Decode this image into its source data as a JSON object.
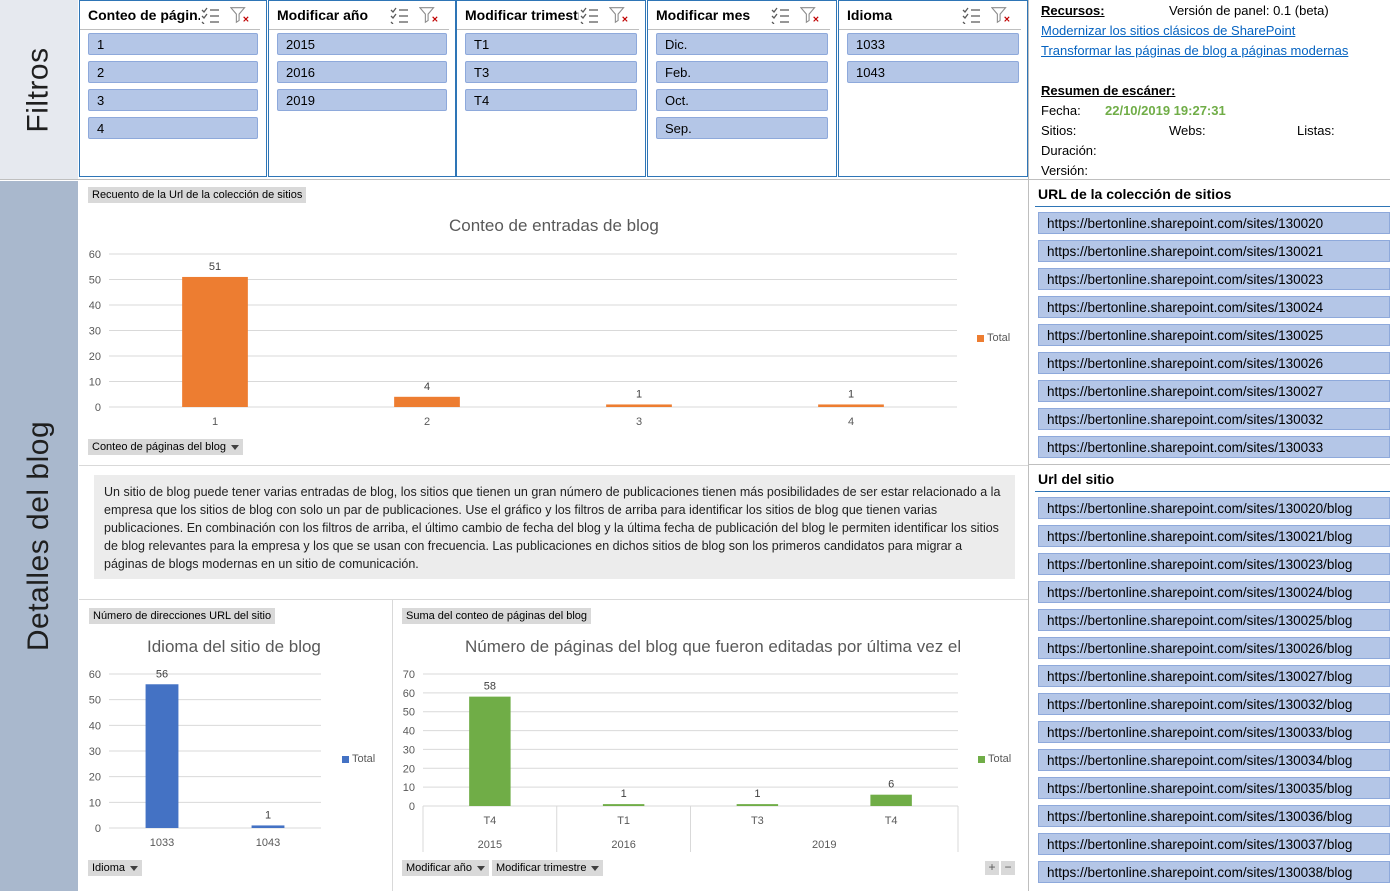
{
  "sections": {
    "filters": "Filtros",
    "details": "Detalles del blog"
  },
  "slicers": [
    {
      "title": "Conteo de págin...",
      "items": [
        "1",
        "2",
        "3",
        "4"
      ]
    },
    {
      "title": "Modificar año",
      "items": [
        "2015",
        "2016",
        "2019"
      ]
    },
    {
      "title": "Modificar trimestre",
      "items": [
        "T1",
        "T3",
        "T4"
      ]
    },
    {
      "title": "Modificar mes",
      "items": [
        "Dic.",
        "Feb.",
        "Oct.",
        "Sep."
      ]
    },
    {
      "title": "Idioma",
      "items": [
        "1033",
        "1043"
      ]
    }
  ],
  "info": {
    "resources_label": "Recursos:",
    "panel_version": "Versión de panel: 0.1 (beta)",
    "link1": "Modernizar los sitios clásicos de SharePoint",
    "link2": "Transformar las páginas de blog a páginas modernas",
    "scanner_label": "Resumen de escáner:",
    "date_label": "Fecha:",
    "date_value": "22/10/2019 19:27:31",
    "sites_label": "Sitios:",
    "webs_label": "Webs:",
    "lists_label": "Listas:",
    "duration_label": "Duración:",
    "version_label": "Versión:",
    "date_color": "#70ad47"
  },
  "chart1": {
    "field_tag": "Recuento de la Url de la colección de sitios",
    "title": "Conteo de entradas de blog",
    "axis_filter": "Conteo de páginas del blog",
    "legend": "Total",
    "color": "#ed7d31"
  },
  "description": "Un sitio de blog puede tener varias entradas de blog, los sitios que tienen un gran número de publicaciones tienen más posibilidades de ser estar relacionado a la empresa que los sitios de blog con solo un par de publicaciones. Use el gráfico y los filtros de arriba para identificar los sitios de blog que tienen varias publicaciones. En combinación con los filtros de arriba, el último cambio de fecha del blog y la última fecha de publicación del blog le permiten identificar los sitios de blog relevantes para la empresa y los que se usan con frecuencia. Las publicaciones en dichos sitios de blog son los primeros candidatos para migrar a páginas de blogs modernas en un sitio de comunicación.",
  "chart2": {
    "field_tag": "Número de direcciones URL del sitio",
    "title": "Idioma del sitio de blog",
    "axis_filter": "Idioma",
    "legend": "Total",
    "color": "#4472c4"
  },
  "chart3": {
    "field_tag": "Suma del conteo de páginas del blog",
    "title": "Número de páginas del blog que fueron editadas por última vez el",
    "axis_filter1": "Modificar año",
    "axis_filter2": "Modificar trimestre",
    "legend": "Total",
    "color": "#70ad47",
    "plus": "+",
    "minus": "−"
  },
  "chart_data": [
    {
      "type": "bar",
      "title": "Conteo de entradas de blog",
      "categories": [
        "1",
        "2",
        "3",
        "4"
      ],
      "series": [
        {
          "name": "Total",
          "values": [
            51,
            4,
            1,
            1
          ]
        }
      ],
      "ylim": [
        0,
        60
      ],
      "yticks": [
        0,
        10,
        20,
        30,
        40,
        50,
        60
      ],
      "legend": "right",
      "grid": true
    },
    {
      "type": "bar",
      "title": "Idioma del sitio de blog",
      "categories": [
        "1033",
        "1043"
      ],
      "series": [
        {
          "name": "Total",
          "values": [
            56,
            1
          ]
        }
      ],
      "ylim": [
        0,
        60
      ],
      "yticks": [
        0,
        10,
        20,
        30,
        40,
        50,
        60
      ],
      "legend": "right",
      "grid": true
    },
    {
      "type": "bar",
      "title": "Número de páginas del blog que fueron editadas por última vez el",
      "categories": [
        "T4",
        "T1",
        "T3",
        "T4"
      ],
      "groups": [
        {
          "label": "2015",
          "span": 1
        },
        {
          "label": "2016",
          "span": 1
        },
        {
          "label": "2019",
          "span": 2
        }
      ],
      "series": [
        {
          "name": "Total",
          "values": [
            58,
            1,
            1,
            6
          ]
        }
      ],
      "ylim": [
        0,
        70
      ],
      "yticks": [
        0,
        10,
        20,
        30,
        40,
        50,
        60,
        70
      ],
      "legend": "right",
      "grid": true
    }
  ],
  "collection_list": {
    "title": "URL de la colección de sitios",
    "items": [
      "https://bertonline.sharepoint.com/sites/130020",
      "https://bertonline.sharepoint.com/sites/130021",
      "https://bertonline.sharepoint.com/sites/130023",
      "https://bertonline.sharepoint.com/sites/130024",
      "https://bertonline.sharepoint.com/sites/130025",
      "https://bertonline.sharepoint.com/sites/130026",
      "https://bertonline.sharepoint.com/sites/130027",
      "https://bertonline.sharepoint.com/sites/130032",
      "https://bertonline.sharepoint.com/sites/130033"
    ]
  },
  "site_list": {
    "title": "Url del sitio",
    "items": [
      "https://bertonline.sharepoint.com/sites/130020/blog",
      "https://bertonline.sharepoint.com/sites/130021/blog",
      "https://bertonline.sharepoint.com/sites/130023/blog",
      "https://bertonline.sharepoint.com/sites/130024/blog",
      "https://bertonline.sharepoint.com/sites/130025/blog",
      "https://bertonline.sharepoint.com/sites/130026/blog",
      "https://bertonline.sharepoint.com/sites/130027/blog",
      "https://bertonline.sharepoint.com/sites/130032/blog",
      "https://bertonline.sharepoint.com/sites/130033/blog",
      "https://bertonline.sharepoint.com/sites/130034/blog",
      "https://bertonline.sharepoint.com/sites/130035/blog",
      "https://bertonline.sharepoint.com/sites/130036/blog",
      "https://bertonline.sharepoint.com/sites/130037/blog",
      "https://bertonline.sharepoint.com/sites/130038/blog"
    ]
  }
}
